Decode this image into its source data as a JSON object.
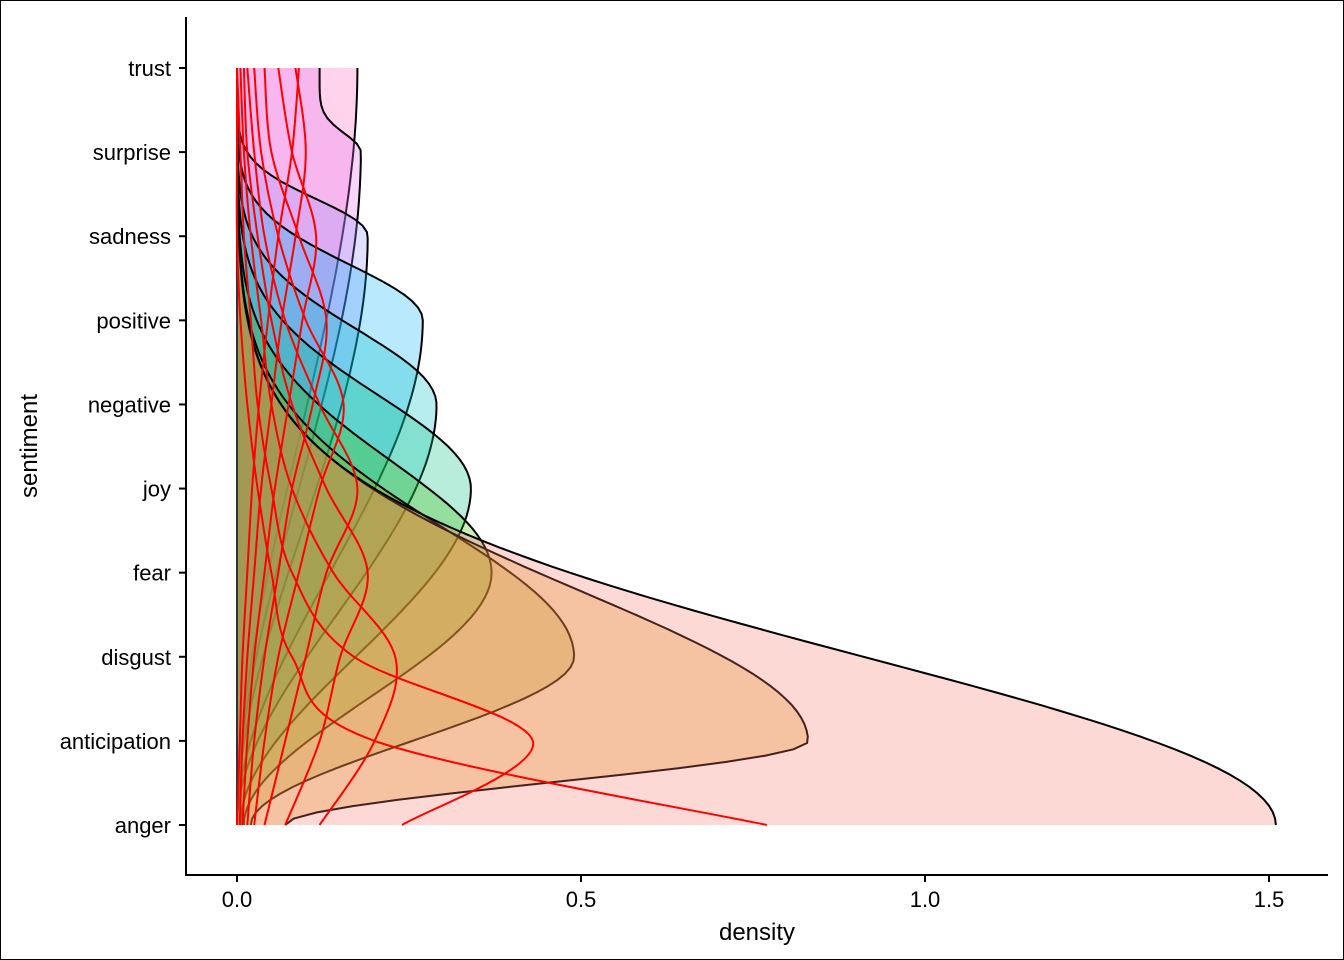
{
  "chart_data": {
    "type": "area",
    "orientation": "density ridges, one curve per sentiment, baselines at the category positions",
    "title": "",
    "xlabel": "density",
    "ylabel": "sentiment",
    "xlim": [
      -0.07,
      1.57
    ],
    "xticks": [
      {
        "value": 0.0,
        "label": "0.0"
      },
      {
        "value": 0.5,
        "label": "0.5"
      },
      {
        "value": 1.0,
        "label": "1.0"
      },
      {
        "value": 1.5,
        "label": "1.5"
      }
    ],
    "categories": [
      "anger",
      "anticipation",
      "disgust",
      "fear",
      "joy",
      "negative",
      "positive",
      "sadness",
      "surprise",
      "trust"
    ],
    "grid": false,
    "legend": "none",
    "series": [
      {
        "category": "anger",
        "fill": "#F8766D",
        "outline": "#000000",
        "peak_density": 1.51,
        "peak_at": "anger",
        "start_density": 0.09,
        "end_density": 0.0
      },
      {
        "category": "anticipation",
        "fill": "#D89000",
        "outline": "#000000",
        "peak_density": 0.83,
        "peak_at": "anticipation",
        "start_density": 0.07,
        "end_density": 0.0
      },
      {
        "category": "disgust",
        "fill": "#A3A500",
        "outline": "#000000",
        "peak_density": 0.49,
        "peak_at": "disgust",
        "start_density": 0.02,
        "end_density": 0.0
      },
      {
        "category": "fear",
        "fill": "#39B600",
        "outline": "#000000",
        "peak_density": 0.37,
        "peak_at": "fear",
        "start_density": 0.01,
        "end_density": 0.0
      },
      {
        "category": "joy",
        "fill": "#00BF7D",
        "outline": "#000000",
        "peak_density": 0.34,
        "peak_at": "joy",
        "start_density": 0.005,
        "end_density": 0.0
      },
      {
        "category": "negative",
        "fill": "#00BFC4",
        "outline": "#000000",
        "peak_density": 0.29,
        "peak_at": "negative",
        "start_density": 0.0,
        "end_density": 0.0
      },
      {
        "category": "positive",
        "fill": "#00B0F6",
        "outline": "#000000",
        "peak_density": 0.27,
        "peak_at": "positive",
        "start_density": 0.0,
        "end_density": 0.0
      },
      {
        "category": "sadness",
        "fill": "#9590FF",
        "outline": "#000000",
        "peak_density": 0.19,
        "peak_at": "sadness",
        "start_density": 0.0,
        "end_density": 0.0
      },
      {
        "category": "surprise",
        "fill": "#E76BF3",
        "outline": "#000000",
        "peak_density": 0.18,
        "peak_at": "surprise",
        "start_density": 0.0,
        "end_density": 0.12
      },
      {
        "category": "trust",
        "fill": "#FF62BC",
        "outline": "#000000",
        "peak_density": 0.175,
        "peak_at": "trust",
        "start_density": 0.0,
        "end_density": 0.175
      }
    ],
    "reference_curves": {
      "stroke": "#FF0000",
      "curves": [
        {
          "anger": 0.77,
          "anticipation": 0.2,
          "disgust": 0.08,
          "fear": 0.05,
          "joy": 0.03,
          "negative": 0.015,
          "positive": 0.005,
          "sadness": 0.0,
          "surprise": 0.0,
          "trust": 0.0
        },
        {
          "anger": 0.24,
          "anticipation": 0.43,
          "disgust": 0.17,
          "fear": 0.08,
          "joy": 0.05,
          "negative": 0.03,
          "positive": 0.02,
          "sadness": 0.01,
          "surprise": 0.005,
          "trust": 0.0
        },
        {
          "anger": 0.12,
          "anticipation": 0.2,
          "disgust": 0.23,
          "fear": 0.14,
          "joy": 0.08,
          "negative": 0.05,
          "positive": 0.035,
          "sadness": 0.02,
          "surprise": 0.01,
          "trust": 0.005
        },
        {
          "anger": 0.07,
          "anticipation": 0.12,
          "disgust": 0.15,
          "fear": 0.19,
          "joy": 0.13,
          "negative": 0.08,
          "positive": 0.05,
          "sadness": 0.03,
          "surprise": 0.015,
          "trust": 0.01
        },
        {
          "anger": 0.04,
          "anticipation": 0.07,
          "disgust": 0.1,
          "fear": 0.13,
          "joy": 0.175,
          "negative": 0.12,
          "positive": 0.07,
          "sadness": 0.04,
          "surprise": 0.025,
          "trust": 0.015
        },
        {
          "anger": 0.025,
          "anticipation": 0.04,
          "disgust": 0.06,
          "fear": 0.09,
          "joy": 0.12,
          "negative": 0.155,
          "positive": 0.1,
          "sadness": 0.06,
          "surprise": 0.035,
          "trust": 0.025
        },
        {
          "anger": 0.015,
          "anticipation": 0.025,
          "disgust": 0.04,
          "fear": 0.06,
          "joy": 0.08,
          "negative": 0.11,
          "positive": 0.13,
          "sadness": 0.09,
          "surprise": 0.05,
          "trust": 0.04
        },
        {
          "anger": 0.008,
          "anticipation": 0.015,
          "disgust": 0.025,
          "fear": 0.04,
          "joy": 0.055,
          "negative": 0.075,
          "positive": 0.095,
          "sadness": 0.115,
          "surprise": 0.08,
          "trust": 0.06
        },
        {
          "anger": 0.004,
          "anticipation": 0.008,
          "disgust": 0.015,
          "fear": 0.025,
          "joy": 0.035,
          "negative": 0.05,
          "positive": 0.065,
          "sadness": 0.085,
          "surprise": 0.1,
          "trust": 0.085
        },
        {
          "anger": 0.0,
          "anticipation": 0.004,
          "disgust": 0.008,
          "fear": 0.015,
          "joy": 0.022,
          "negative": 0.032,
          "positive": 0.045,
          "sadness": 0.06,
          "surprise": 0.08,
          "trust": 0.09
        }
      ]
    }
  }
}
